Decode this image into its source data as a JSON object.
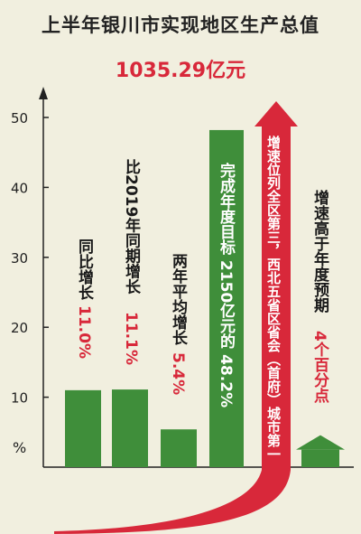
{
  "title": "上半年银川市实现地区生产总值",
  "total": "1035.29亿元",
  "chart_data": {
    "type": "bar",
    "ylabel": "%",
    "ylim": [
      0,
      52
    ],
    "yticks": [
      10,
      20,
      30,
      40,
      50
    ],
    "values": [
      11.0,
      11.1,
      5.4,
      48.2,
      2.5
    ],
    "grid": false,
    "colors": {
      "bar": "#3f8e3a",
      "arrow": "#d8283a",
      "text_dark": "#1a1a1a",
      "text_red": "#d8283a"
    },
    "annotations": [
      {
        "text_a": "同比增长",
        "text_b": "11.0%"
      },
      {
        "text_a": "比2019年同期增长",
        "text_b": "11.1%"
      },
      {
        "text_a": "两年平均增长",
        "text_b": "5.4%"
      },
      {
        "text_a": "完成年度目标 2150亿元的 48.2%",
        "text_b": ""
      },
      {
        "text_a": "增速位列全区第三，西北五省区省会（首府）城市第一",
        "text_b": ""
      },
      {
        "text_a": "增速高于年度预期",
        "text_b": "4个百分点"
      }
    ]
  }
}
